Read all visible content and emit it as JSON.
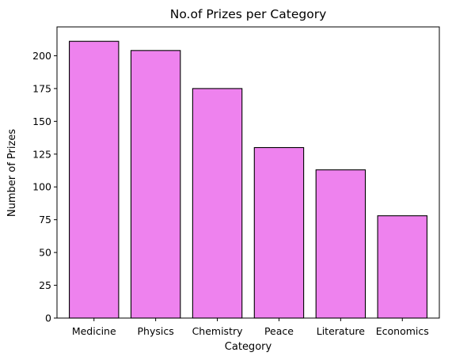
{
  "chart_data": {
    "type": "bar",
    "title": "No.of Prizes per Category",
    "xlabel": "Category",
    "ylabel": "Number of Prizes",
    "categories": [
      "Medicine",
      "Physics",
      "Chemistry",
      "Peace",
      "Literature",
      "Economics"
    ],
    "values": [
      211,
      204,
      175,
      130,
      113,
      78
    ],
    "ylim": [
      0,
      222
    ],
    "yticks": [
      0,
      25,
      50,
      75,
      100,
      125,
      150,
      175,
      200
    ],
    "bar_color": "#ee82ee",
    "edge_color": "#000000",
    "grid": false,
    "legend": "none"
  }
}
